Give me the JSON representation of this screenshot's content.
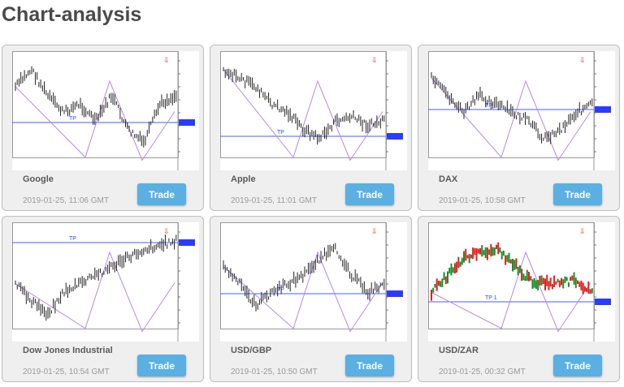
{
  "page_title": "Chart-analysis",
  "accent_color": "#5aafe3",
  "cards": [
    {
      "name": "Google",
      "date": "2019-01-25, 11:06 GMT",
      "button": "Trade",
      "tp_label": "TP"
    },
    {
      "name": "Apple",
      "date": "2019-01-25, 11:01 GMT",
      "button": "Trade",
      "tp_label": "TP"
    },
    {
      "name": "DAX",
      "date": "2019-01-25, 10:58 GMT",
      "button": "Trade",
      "tp_label": "TP"
    },
    {
      "name": "Dow Jones Industrial",
      "date": "2019-01-25, 10:54 GMT",
      "button": "Trade",
      "tp_label": "TP"
    },
    {
      "name": "USD/GBP",
      "date": "2019-01-25, 10:50 GMT",
      "button": "Trade",
      "tp_label": "TP"
    },
    {
      "name": "USD/ZAR",
      "date": "2019-01-25, 00:32 GMT",
      "button": "Trade",
      "tp_label": "TP 1"
    }
  ]
}
